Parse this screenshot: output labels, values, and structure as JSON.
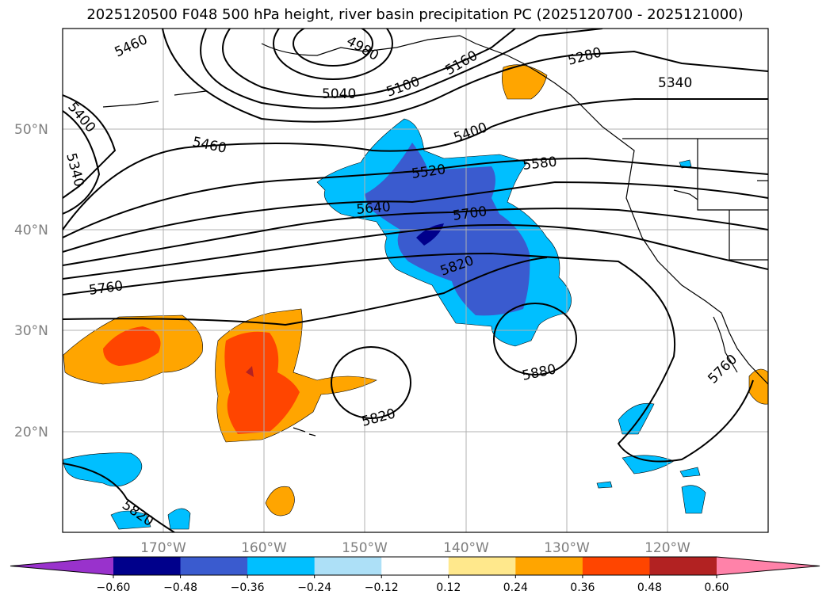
{
  "title": "2025120500 F048 500 hPa height, river basin precipitation PC (2025120700 - 2025121000)",
  "map": {
    "lat_labels": [
      "50°N",
      "40°N",
      "30°N",
      "20°N"
    ],
    "lon_labels": [
      "170°W",
      "160°W",
      "150°W",
      "140°W",
      "130°W",
      "120°W"
    ],
    "contour_labels": [
      "5460",
      "4980",
      "5160",
      "5280",
      "5340",
      "5040",
      "5100",
      "5400",
      "5340",
      "5400",
      "5460",
      "5520",
      "5580",
      "5640",
      "5700",
      "5760",
      "5820",
      "5880",
      "5820",
      "5760",
      "5820"
    ]
  },
  "colorbar": {
    "ticks": [
      "−0.60",
      "−0.48",
      "−0.36",
      "−0.24",
      "−0.12",
      "0.12",
      "0.24",
      "0.36",
      "0.48",
      "0.60"
    ],
    "colors": [
      "#9932CC",
      "#00008B",
      "#3A5BCF",
      "#00BFFF",
      "#ADE0F7",
      "#FFFFFF",
      "#FFE88C",
      "#FFA500",
      "#FF4500",
      "#B22222",
      "#FF82A9"
    ]
  }
}
